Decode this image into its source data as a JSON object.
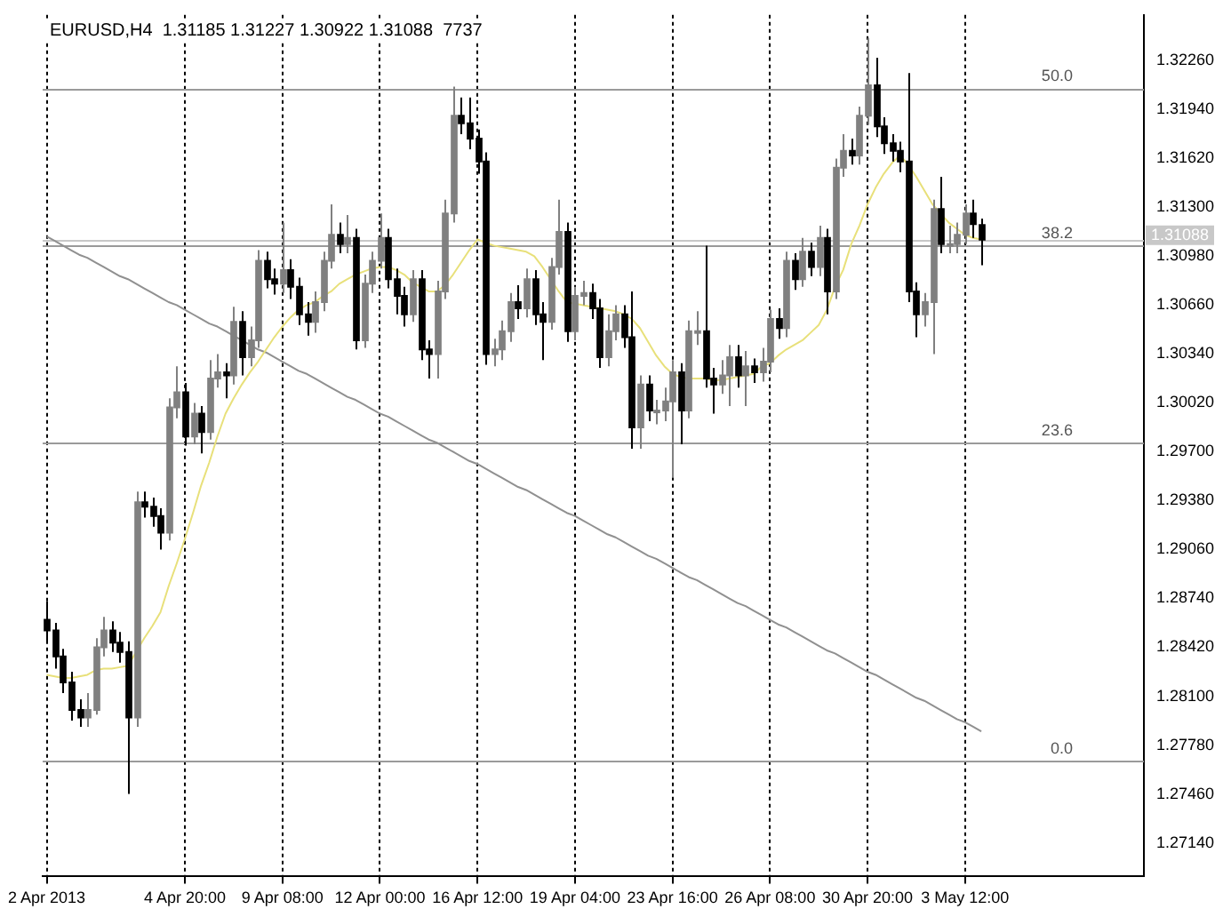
{
  "chart_data": {
    "type": "candlestick",
    "title": "EURUSD,H4  1.31185 1.31227 1.30922 1.31088  7737",
    "categories": [
      "2 Apr 2013",
      null,
      null,
      null,
      null,
      null,
      null,
      null,
      null,
      null,
      null,
      null,
      null,
      null,
      null,
      null,
      null,
      "4 Apr 20:00",
      null,
      null,
      null,
      null,
      null,
      null,
      null,
      null,
      null,
      null,
      null,
      "9 Apr 08:00",
      null,
      null,
      null,
      null,
      null,
      null,
      null,
      null,
      null,
      null,
      null,
      "12 Apr 00:00",
      null,
      null,
      null,
      null,
      null,
      null,
      null,
      null,
      null,
      null,
      null,
      "16 Apr 12:00",
      null,
      null,
      null,
      null,
      null,
      null,
      null,
      null,
      null,
      null,
      null,
      "19 Apr 04:00",
      null,
      null,
      null,
      null,
      null,
      null,
      null,
      null,
      null,
      null,
      null,
      "23 Apr 16:00",
      null,
      null,
      null,
      null,
      null,
      null,
      null,
      null,
      null,
      null,
      null,
      "26 Apr 08:00",
      null,
      null,
      null,
      null,
      null,
      null,
      null,
      null,
      null,
      null,
      null,
      "30 Apr 20:00",
      null,
      null,
      null,
      null,
      null,
      null,
      null,
      null,
      null,
      null,
      null,
      "3 May 12:00",
      null,
      null
    ],
    "ylim": [
      1.2692,
      1.3256
    ],
    "yticks": [
      {
        "value": 1.3226,
        "label": "1.32260"
      },
      {
        "value": 1.3194,
        "label": "1.31940"
      },
      {
        "value": 1.3162,
        "label": "1.31620"
      },
      {
        "value": 1.313,
        "label": "1.31300"
      },
      {
        "value": 1.3098,
        "label": "1.30980"
      },
      {
        "value": 1.3066,
        "label": "1.30660"
      },
      {
        "value": 1.3034,
        "label": "1.30340"
      },
      {
        "value": 1.3002,
        "label": "1.30020"
      },
      {
        "value": 1.297,
        "label": "1.29700"
      },
      {
        "value": 1.2938,
        "label": "1.29380"
      },
      {
        "value": 1.2906,
        "label": "1.29060"
      },
      {
        "value": 1.2874,
        "label": "1.28740"
      },
      {
        "value": 1.2842,
        "label": "1.28420"
      },
      {
        "value": 1.281,
        "label": "1.28100"
      },
      {
        "value": 1.2778,
        "label": "1.27780"
      },
      {
        "value": 1.2746,
        "label": "1.27460"
      },
      {
        "value": 1.2714,
        "label": "1.27140"
      }
    ],
    "grid": "x",
    "annotations": [
      {
        "text": "50.0",
        "y": 1.3208
      },
      {
        "text": "38.2",
        "y": 1.3105
      },
      {
        "text": "23.6",
        "y": 1.2976
      },
      {
        "text": "0.0",
        "y": 1.2768
      }
    ],
    "ref_lines": [
      {
        "axis": "y",
        "value": 1.3208,
        "color": "#9a9a9a"
      },
      {
        "axis": "y",
        "value": 1.3105,
        "color": "#9a9a9a"
      },
      {
        "axis": "y",
        "value": 1.2976,
        "color": "#9a9a9a"
      },
      {
        "axis": "y",
        "value": 1.2768,
        "color": "#9a9a9a"
      },
      {
        "axis": "y",
        "value": 1.31088,
        "label": "1.31088",
        "color": "#c8c8c8"
      }
    ],
    "series": [
      {
        "type": "candlestick",
        "colors": [
          "#000000",
          "#000000",
          "#000000",
          "#000000",
          "#000000",
          "#808080",
          "#808080",
          "#808080",
          "#000000",
          "#000000",
          "#000000",
          "#808080",
          "#000000",
          "#000000",
          "#000000",
          "#808080",
          "#808080",
          "#000000",
          "#808080",
          "#000000",
          "#808080",
          "#808080",
          "#000000",
          "#808080",
          "#000000",
          "#808080",
          "#808080",
          "#000000",
          "#000000",
          "#808080",
          "#000000",
          "#000000",
          "#000000",
          "#808080",
          "#808080",
          "#808080",
          "#000000",
          "#808080",
          "#000000",
          "#808080",
          "#808080",
          "#808080",
          "#000000",
          "#000000",
          "#000000",
          "#808080",
          "#000000",
          "#000000",
          "#808080",
          "#808080",
          "#808080",
          "#000000",
          "#000000",
          "#000000",
          "#000000",
          "#808080",
          "#808080",
          "#808080",
          "#000000",
          "#808080",
          "#000000",
          "#000000",
          "#808080",
          "#808080",
          "#000000",
          "#808080",
          "#808080",
          "#000000",
          "#000000",
          "#808080",
          "#808080",
          "#000000",
          "#000000",
          "#808080",
          "#000000",
          "#808080",
          "#808080",
          "#808080",
          "#000000",
          "#808080",
          "#808080",
          "#000000",
          "#000000",
          "#808080",
          "#808080",
          "#000000",
          "#808080",
          "#000000",
          "#808080",
          "#808080",
          "#000000",
          "#808080",
          "#000000",
          "#808080",
          "#000000",
          "#808080",
          "#000000",
          "#808080",
          "#808080",
          "#000000",
          "#808080",
          "#808080",
          "#000000",
          "#000000",
          "#000000",
          "#000000",
          "#000000",
          "#000000",
          "#808080",
          "#808080",
          "#000000",
          "#808080",
          "#808080",
          "#808080",
          "#000000",
          "#000000"
        ],
        "ohlc": [
          [
            1.286,
            1.2872,
            1.2845,
            1.2853
          ],
          [
            1.2853,
            1.2858,
            1.2828,
            1.2836
          ],
          [
            1.2836,
            1.2841,
            1.2812,
            1.2819
          ],
          [
            1.2819,
            1.2826,
            1.2794,
            1.2801
          ],
          [
            1.2801,
            1.2808,
            1.279,
            1.2796
          ],
          [
            1.2796,
            1.2812,
            1.279,
            1.2801
          ],
          [
            1.2801,
            1.2848,
            1.2798,
            1.2842
          ],
          [
            1.2842,
            1.2862,
            1.2836,
            1.2853
          ],
          [
            1.2853,
            1.2859,
            1.2839,
            1.2845
          ],
          [
            1.2845,
            1.2852,
            1.2832,
            1.2839
          ],
          [
            1.2839,
            1.2846,
            1.2746,
            1.2796
          ],
          [
            1.2796,
            1.2944,
            1.279,
            1.2937
          ],
          [
            1.2937,
            1.2944,
            1.2927,
            1.2934
          ],
          [
            1.2934,
            1.294,
            1.2921,
            1.2928
          ],
          [
            1.2928,
            1.2933,
            1.2906,
            1.2917
          ],
          [
            1.2917,
            1.3005,
            1.2912,
            1.2999
          ],
          [
            1.2999,
            1.3026,
            1.2992,
            1.3009
          ],
          [
            1.3009,
            1.3015,
            1.2974,
            1.298
          ],
          [
            1.298,
            1.3002,
            1.2975,
            1.2995
          ],
          [
            1.2995,
            1.3,
            1.2969,
            1.2983
          ],
          [
            1.2983,
            1.303,
            1.2978,
            1.3018
          ],
          [
            1.3018,
            1.3034,
            1.3012,
            1.3022
          ],
          [
            1.3022,
            1.3028,
            1.3005,
            1.302
          ],
          [
            1.302,
            1.3065,
            1.3014,
            1.3055
          ],
          [
            1.3055,
            1.3062,
            1.302,
            1.3032
          ],
          [
            1.3032,
            1.3052,
            1.3026,
            1.3043
          ],
          [
            1.3043,
            1.3102,
            1.3038,
            1.3095
          ],
          [
            1.3095,
            1.3101,
            1.3077,
            1.3083
          ],
          [
            1.3083,
            1.309,
            1.3073,
            1.308
          ],
          [
            1.308,
            1.312,
            1.3074,
            1.3089
          ],
          [
            1.3089,
            1.3096,
            1.307,
            1.3078
          ],
          [
            1.3078,
            1.3084,
            1.3053,
            1.306
          ],
          [
            1.306,
            1.3068,
            1.3046,
            1.3055
          ],
          [
            1.3055,
            1.3075,
            1.3048,
            1.3068
          ],
          [
            1.3068,
            1.3101,
            1.3062,
            1.3095
          ],
          [
            1.3095,
            1.3132,
            1.309,
            1.3112
          ],
          [
            1.3112,
            1.312,
            1.31,
            1.3106
          ],
          [
            1.3106,
            1.3125,
            1.31,
            1.311
          ],
          [
            1.311,
            1.3116,
            1.3037,
            1.3043
          ],
          [
            1.3043,
            1.3086,
            1.3038,
            1.308
          ],
          [
            1.308,
            1.3101,
            1.3074,
            1.3095
          ],
          [
            1.3095,
            1.3126,
            1.309,
            1.311
          ],
          [
            1.311,
            1.3116,
            1.3077,
            1.3083
          ],
          [
            1.3083,
            1.309,
            1.306,
            1.3072
          ],
          [
            1.3072,
            1.3078,
            1.3052,
            1.306
          ],
          [
            1.306,
            1.3089,
            1.3055,
            1.3083
          ],
          [
            1.3083,
            1.3089,
            1.303,
            1.3037
          ],
          [
            1.3037,
            1.3043,
            1.3018,
            1.3034
          ],
          [
            1.3034,
            1.3082,
            1.3018,
            1.3075
          ],
          [
            1.3075,
            1.3135,
            1.307,
            1.3126
          ],
          [
            1.3126,
            1.3209,
            1.312,
            1.319
          ],
          [
            1.319,
            1.3202,
            1.3178,
            1.3185
          ],
          [
            1.3185,
            1.3202,
            1.3168,
            1.3175
          ],
          [
            1.3175,
            1.3181,
            1.3152,
            1.316
          ],
          [
            1.316,
            1.3166,
            1.3027,
            1.3034
          ],
          [
            1.3034,
            1.3044,
            1.3026,
            1.3037
          ],
          [
            1.3037,
            1.3056,
            1.303,
            1.3049
          ],
          [
            1.3049,
            1.3074,
            1.3042,
            1.3068
          ],
          [
            1.3068,
            1.3079,
            1.3057,
            1.3064
          ],
          [
            1.3064,
            1.309,
            1.3058,
            1.3083
          ],
          [
            1.3083,
            1.3089,
            1.3053,
            1.306
          ],
          [
            1.306,
            1.3068,
            1.303,
            1.3055
          ],
          [
            1.3055,
            1.3097,
            1.305,
            1.3091
          ],
          [
            1.3091,
            1.3135,
            1.3086,
            1.3114
          ],
          [
            1.3114,
            1.312,
            1.3042,
            1.3049
          ],
          [
            1.3049,
            1.3078,
            1.3043,
            1.3072
          ],
          [
            1.3072,
            1.3082,
            1.3066,
            1.3074
          ],
          [
            1.3074,
            1.308,
            1.3057,
            1.3064
          ],
          [
            1.3064,
            1.307,
            1.3025,
            1.3032
          ],
          [
            1.3032,
            1.306,
            1.3026,
            1.3049
          ],
          [
            1.3049,
            1.3066,
            1.3043,
            1.306
          ],
          [
            1.306,
            1.3066,
            1.3038,
            1.3045
          ],
          [
            1.3045,
            1.3075,
            1.2972,
            1.2986
          ],
          [
            1.2986,
            1.302,
            1.2972,
            1.3014
          ],
          [
            1.3014,
            1.302,
            1.299,
            1.2997
          ],
          [
            1.2997,
            1.3004,
            1.2988,
            1.2997
          ],
          [
            1.2997,
            1.3012,
            1.299,
            1.3003
          ],
          [
            1.3003,
            1.303,
            1.2953,
            1.3022
          ],
          [
            1.3022,
            1.3028,
            1.2975,
            1.2997
          ],
          [
            1.2997,
            1.3056,
            1.2992,
            1.3049
          ],
          [
            1.3049,
            1.3062,
            1.304,
            1.3049
          ],
          [
            1.3049,
            1.3105,
            1.3012,
            1.3018
          ],
          [
            1.3018,
            1.3025,
            1.2995,
            1.3014
          ],
          [
            1.3014,
            1.303,
            1.3008,
            1.302
          ],
          [
            1.302,
            1.304,
            1.3,
            1.3032
          ],
          [
            1.3032,
            1.304,
            1.3012,
            1.302
          ],
          [
            1.302,
            1.3036,
            1.3,
            1.3026
          ],
          [
            1.3026,
            1.3031,
            1.3015,
            1.3022
          ],
          [
            1.3022,
            1.3038,
            1.3016,
            1.3029
          ],
          [
            1.3029,
            1.3063,
            1.3022,
            1.3057
          ],
          [
            1.3057,
            1.3064,
            1.3044,
            1.3051
          ],
          [
            1.3051,
            1.3101,
            1.3045,
            1.3095
          ],
          [
            1.3095,
            1.31,
            1.3076,
            1.3083
          ],
          [
            1.3083,
            1.311,
            1.3078,
            1.3101
          ],
          [
            1.3101,
            1.3107,
            1.3085,
            1.3091
          ],
          [
            1.3091,
            1.3118,
            1.3085,
            1.311
          ],
          [
            1.311,
            1.3116,
            1.306,
            1.3075
          ],
          [
            1.3075,
            1.3162,
            1.307,
            1.3156
          ],
          [
            1.3156,
            1.3178,
            1.315,
            1.3167
          ],
          [
            1.3167,
            1.3175,
            1.3158,
            1.3164
          ],
          [
            1.3164,
            1.3196,
            1.3158,
            1.319
          ],
          [
            1.319,
            1.3241,
            1.3184,
            1.321
          ],
          [
            1.321,
            1.3228,
            1.3176,
            1.3183
          ],
          [
            1.3183,
            1.3189,
            1.3165,
            1.3172
          ],
          [
            1.3172,
            1.3178,
            1.316,
            1.3167
          ],
          [
            1.3167,
            1.3173,
            1.3153,
            1.316
          ],
          [
            1.316,
            1.3218,
            1.3068,
            1.3075
          ],
          [
            1.3075,
            1.3081,
            1.3045,
            1.306
          ],
          [
            1.306,
            1.3074,
            1.3052,
            1.3068
          ],
          [
            1.3068,
            1.3135,
            1.3034,
            1.3129
          ],
          [
            1.3129,
            1.315,
            1.31,
            1.3106
          ],
          [
            1.3106,
            1.3118,
            1.31,
            1.3106
          ],
          [
            1.3106,
            1.312,
            1.31,
            1.3112
          ],
          [
            1.3112,
            1.3132,
            1.3106,
            1.3126
          ],
          [
            1.3126,
            1.3135,
            1.311,
            1.3119
          ],
          [
            1.31185,
            1.31227,
            1.30922,
            1.31088
          ]
        ]
      },
      {
        "type": "line",
        "color": "#e8e07a",
        "values": [
          1.2824,
          1.2823,
          1.2822,
          1.2822,
          1.2823,
          1.2824,
          1.2827,
          1.2828,
          1.2828,
          1.2829,
          1.283,
          1.2839,
          1.2848,
          1.2856,
          1.2865,
          1.2882,
          1.2897,
          1.2913,
          1.293,
          1.2948,
          1.2963,
          1.298,
          1.2995,
          1.3005,
          1.3014,
          1.3022,
          1.3029,
          1.3037,
          1.3045,
          1.3052,
          1.3058,
          1.3063,
          1.3066,
          1.3068,
          1.3072,
          1.3075,
          1.308,
          1.3083,
          1.3086,
          1.3088,
          1.309,
          1.3091,
          1.3091,
          1.3089,
          1.3086,
          1.3081,
          1.3078,
          1.3075,
          1.3075,
          1.3079,
          1.3086,
          1.3094,
          1.3102,
          1.3109,
          1.3107,
          1.3105,
          1.3104,
          1.3103,
          1.3102,
          1.3101,
          1.3098,
          1.3091,
          1.3083,
          1.3075,
          1.3068,
          1.3067,
          1.3066,
          1.3065,
          1.3064,
          1.3063,
          1.3062,
          1.306,
          1.3057,
          1.3051,
          1.3042,
          1.3033,
          1.3026,
          1.3021,
          1.3019,
          1.3018,
          1.3018,
          1.3018,
          1.3017,
          1.3017,
          1.3018,
          1.3019,
          1.302,
          1.3021,
          1.3026,
          1.3028,
          1.3033,
          1.3037,
          1.304,
          1.3043,
          1.3048,
          1.3053,
          1.3063,
          1.3078,
          1.3089,
          1.3106,
          1.3118,
          1.3132,
          1.3143,
          1.3152,
          1.3159,
          1.3164,
          1.3158,
          1.315,
          1.3141,
          1.3132,
          1.3126,
          1.312,
          1.3116,
          1.3112,
          1.311,
          1.3109
        ]
      },
      {
        "type": "line",
        "color": "#909090",
        "values": [
          1.3111,
          1.3108,
          1.3105,
          1.3102,
          1.3099,
          1.3097,
          1.3094,
          1.3091,
          1.3088,
          1.3085,
          1.3083,
          1.308,
          1.3077,
          1.3074,
          1.3071,
          1.3068,
          1.3066,
          1.3063,
          1.306,
          1.3057,
          1.3054,
          1.3052,
          1.3049,
          1.3046,
          1.3043,
          1.304,
          1.3037,
          1.3035,
          1.3032,
          1.3029,
          1.3026,
          1.3023,
          1.3021,
          1.3018,
          1.3015,
          1.3012,
          1.3009,
          1.3006,
          1.3004,
          1.3001,
          1.2998,
          1.2995,
          1.2993,
          1.299,
          1.2987,
          1.2984,
          1.2981,
          1.2978,
          1.2976,
          1.2973,
          1.297,
          1.2967,
          1.2964,
          1.2962,
          1.2959,
          1.2956,
          1.2953,
          1.295,
          1.2947,
          1.2945,
          1.2942,
          1.2939,
          1.2936,
          1.2933,
          1.293,
          1.2928,
          1.2925,
          1.2922,
          1.2919,
          1.2916,
          1.2914,
          1.2911,
          1.2908,
          1.2905,
          1.2902,
          1.29,
          1.2897,
          1.2894,
          1.2891,
          1.2888,
          1.2886,
          1.2883,
          1.288,
          1.2877,
          1.2874,
          1.2871,
          1.2869,
          1.2866,
          1.2863,
          1.286,
          1.2857,
          1.2855,
          1.2852,
          1.2849,
          1.2846,
          1.2843,
          1.284,
          1.2838,
          1.2835,
          1.2832,
          1.2829,
          1.2826,
          1.2824,
          1.2821,
          1.2818,
          1.2815,
          1.2812,
          1.2809,
          1.2807,
          1.2804,
          1.2801,
          1.2798,
          1.2795,
          1.2793,
          1.279,
          1.2787
        ]
      }
    ]
  }
}
